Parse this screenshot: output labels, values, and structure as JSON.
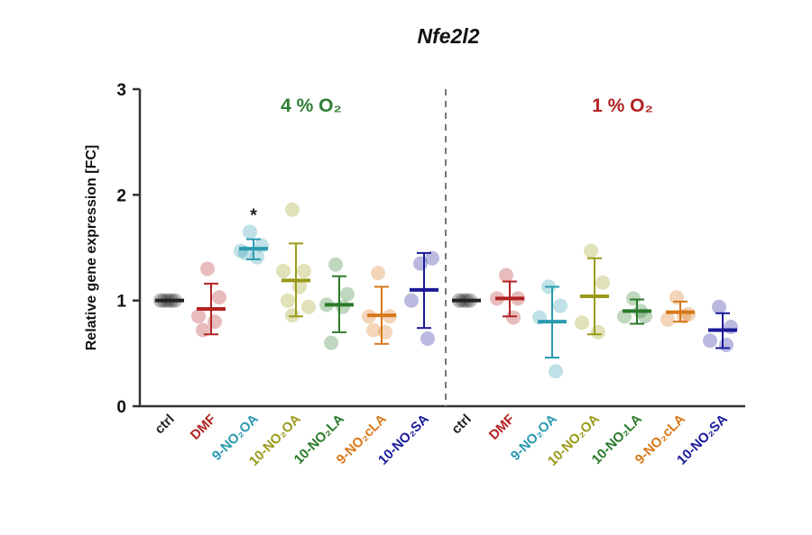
{
  "chart_data": {
    "type": "scatter",
    "title": "Nfe2l2",
    "ylabel": "Relative gene expression [FC]",
    "xlabel": "",
    "ylim": [
      0,
      3
    ],
    "yticks": [
      "0",
      "1",
      "2",
      "3"
    ],
    "grid": false,
    "significance_marker": "*",
    "groups": [
      {
        "label": "4 % O₂",
        "color": "#2e7d32"
      },
      {
        "label": "1 % O₂",
        "color": "#b22222"
      }
    ],
    "series": [
      {
        "group": 0,
        "label": "ctrl",
        "color": "#222222",
        "mean": 1.0,
        "err": [
          1.0,
          1.0
        ],
        "points": [
          1.0,
          1.0,
          1.0,
          1.0,
          1.0
        ]
      },
      {
        "group": 0,
        "label": "DMF",
        "color": "#b22222",
        "mean": 0.92,
        "err": [
          0.68,
          1.16
        ],
        "points": [
          1.3,
          1.03,
          0.85,
          0.8,
          0.72
        ]
      },
      {
        "group": 0,
        "label": "9-NO₂OA",
        "color": "#2a9ab0",
        "mean": 1.49,
        "err": [
          1.39,
          1.58
        ],
        "points": [
          1.65,
          1.52,
          1.47,
          1.41,
          1.45
        ],
        "significant": true
      },
      {
        "group": 0,
        "label": "10-NO₂OA",
        "color": "#9a9a1a",
        "mean": 1.19,
        "err": [
          0.85,
          1.54
        ],
        "points": [
          1.86,
          1.28,
          1.28,
          1.13,
          1.0,
          0.94,
          0.86
        ]
      },
      {
        "group": 0,
        "label": "10-NO₂LA",
        "color": "#2a7a2a",
        "mean": 0.96,
        "err": [
          0.7,
          1.23
        ],
        "points": [
          1.34,
          1.06,
          0.96,
          0.94,
          0.6
        ]
      },
      {
        "group": 0,
        "label": "9-NO₂cLA",
        "color": "#d8781a",
        "mean": 0.86,
        "err": [
          0.59,
          1.13
        ],
        "points": [
          1.26,
          0.85,
          0.85,
          0.7,
          0.72
        ]
      },
      {
        "group": 0,
        "label": "10-NO₂SA",
        "color": "#1a1a9a",
        "mean": 1.1,
        "err": [
          0.74,
          1.45
        ],
        "points": [
          1.35,
          1.4,
          1.0,
          0.64
        ]
      },
      {
        "group": 1,
        "label": "ctrl",
        "color": "#222222",
        "mean": 1.0,
        "err": [
          1.0,
          1.0
        ],
        "points": [
          1.0,
          1.0,
          1.0,
          1.0
        ]
      },
      {
        "group": 1,
        "label": "DMF",
        "color": "#b22222",
        "mean": 1.02,
        "err": [
          0.85,
          1.18
        ],
        "points": [
          1.24,
          1.02,
          1.02,
          0.84
        ]
      },
      {
        "group": 1,
        "label": "9-NO₂OA",
        "color": "#2a9ab0",
        "mean": 0.8,
        "err": [
          0.46,
          1.13
        ],
        "points": [
          1.13,
          0.95,
          0.84,
          0.33
        ]
      },
      {
        "group": 1,
        "label": "10-NO₂OA",
        "color": "#9a9a1a",
        "mean": 1.04,
        "err": [
          0.68,
          1.4
        ],
        "points": [
          1.47,
          1.17,
          0.79,
          0.7
        ]
      },
      {
        "group": 1,
        "label": "10-NO₂LA",
        "color": "#2a7a2a",
        "mean": 0.9,
        "err": [
          0.78,
          1.01
        ],
        "points": [
          1.02,
          0.85,
          0.85,
          0.9
        ]
      },
      {
        "group": 1,
        "label": "9-NO₂cLA",
        "color": "#d8781a",
        "mean": 0.89,
        "err": [
          0.8,
          0.99
        ],
        "points": [
          1.03,
          0.87,
          0.82,
          0.85
        ]
      },
      {
        "group": 1,
        "label": "10-NO₂SA",
        "color": "#1a1a9a",
        "mean": 0.72,
        "err": [
          0.55,
          0.88
        ],
        "points": [
          0.94,
          0.75,
          0.62,
          0.58
        ]
      }
    ]
  }
}
